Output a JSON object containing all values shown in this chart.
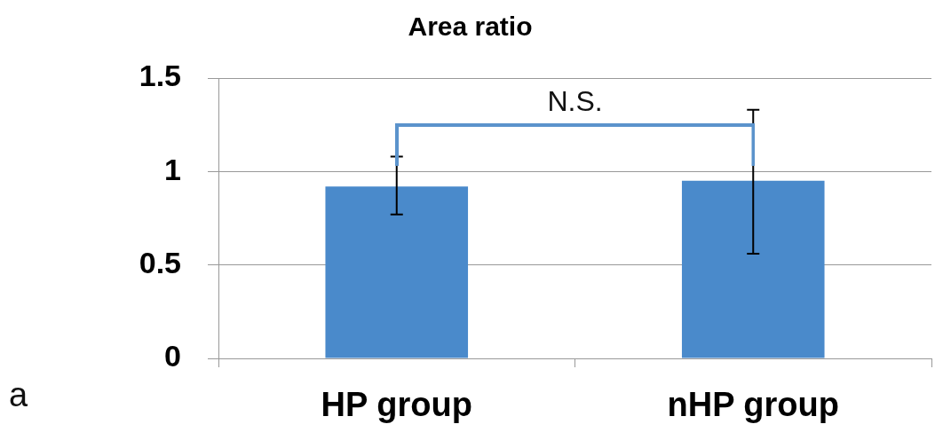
{
  "chart_data": {
    "type": "bar",
    "title": "Area ratio",
    "categories": [
      "HP group",
      "nHP group"
    ],
    "values": [
      0.92,
      0.95
    ],
    "errors": [
      [
        0.77,
        1.08
      ],
      [
        0.56,
        1.33
      ]
    ],
    "color": "#4a8acb",
    "ylim": [
      0,
      1.5
    ],
    "yticks": [
      0,
      0.5,
      1,
      1.5
    ],
    "grid": "y",
    "annotations": [
      "N.S.",
      "a"
    ]
  }
}
